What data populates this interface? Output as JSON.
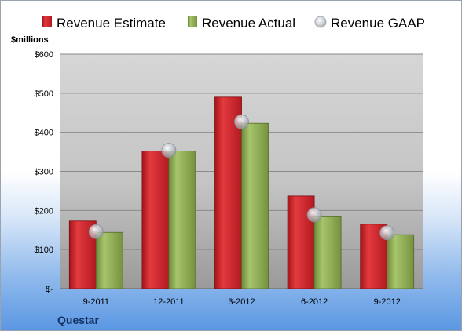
{
  "chart_data": {
    "type": "bar",
    "title": "",
    "ylabel": "$millions",
    "xlabel": "",
    "ylim": [
      0,
      600
    ],
    "y_ticks": [
      0,
      100,
      200,
      300,
      400,
      500,
      600
    ],
    "y_tick_labels": [
      "$-",
      "$100",
      "$200",
      "$300",
      "$400",
      "$500",
      "$600"
    ],
    "categories": [
      "9-2011",
      "12-2011",
      "3-2012",
      "6-2012",
      "9-2012"
    ],
    "series": [
      {
        "name": "Revenue Estimate",
        "kind": "bar",
        "color": "#cc1f26",
        "values": [
          173,
          352,
          490,
          237,
          165
        ]
      },
      {
        "name": "Revenue Actual",
        "kind": "bar",
        "color": "#8aa856",
        "values": [
          144,
          352,
          423,
          184,
          138
        ]
      },
      {
        "name": "Revenue GAAP",
        "kind": "marker",
        "color": "#b8bcc4",
        "values": [
          146,
          354,
          427,
          189,
          143
        ]
      }
    ],
    "grid": true,
    "legend_position": "top",
    "company": "Questar"
  }
}
